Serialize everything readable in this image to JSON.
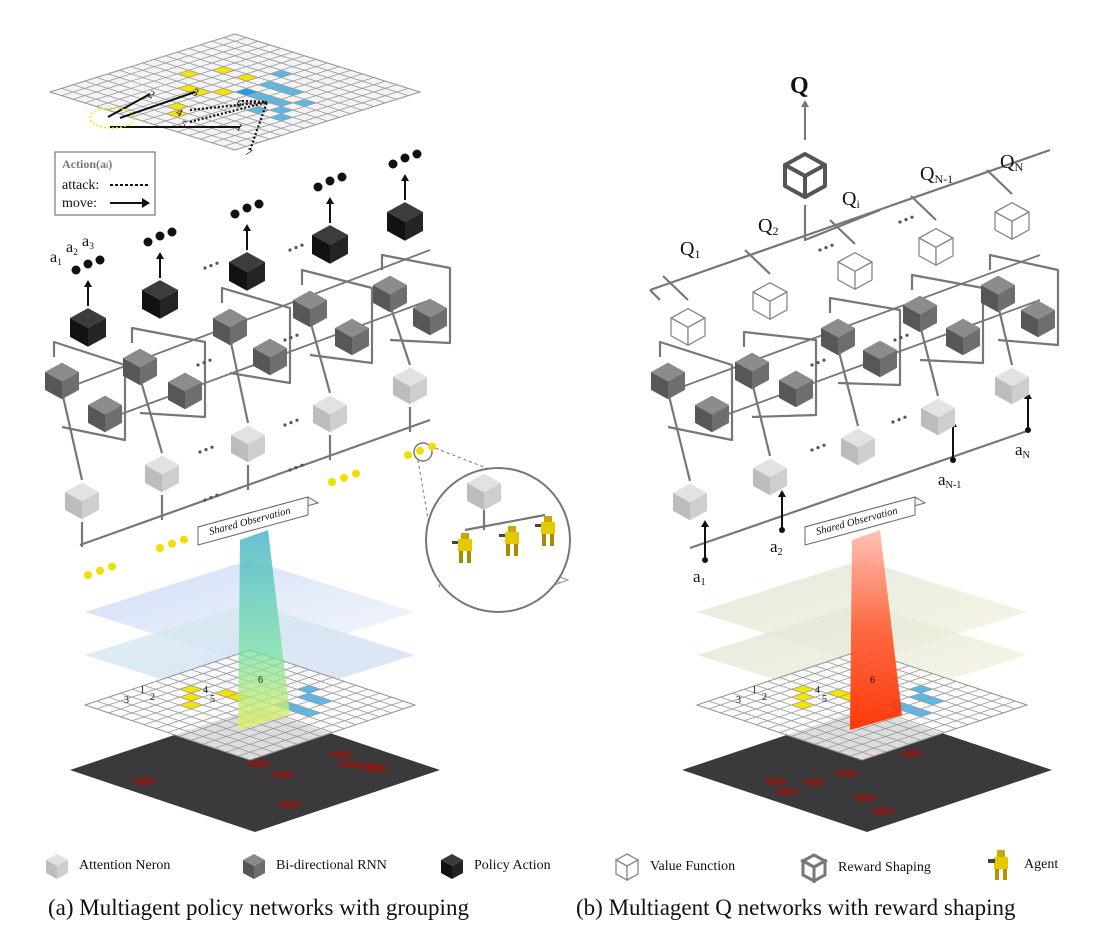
{
  "panel_a": {
    "action_box": {
      "title": "Action(a",
      "title_sub": "i",
      "title_close": ")",
      "attack_label": "attack:",
      "move_label": "move:"
    },
    "grid_numbers": [
      "1",
      "2",
      "3",
      "4",
      "5",
      "6",
      "7"
    ],
    "action_labels": [
      {
        "base": "a",
        "sub": "1"
      },
      {
        "base": "a",
        "sub": "2"
      },
      {
        "base": "a",
        "sub": "3"
      }
    ],
    "shared_observation": "Shared Observation",
    "map_numbers": [
      "1",
      "2",
      "3",
      "4",
      "5",
      "6"
    ]
  },
  "panel_b": {
    "q_top": "Q",
    "q_labels": [
      {
        "base": "Q",
        "sub": "1"
      },
      {
        "base": "Q",
        "sub": "2"
      },
      {
        "base": "Q",
        "sub": "i"
      },
      {
        "base": "Q",
        "sub": "N-1"
      },
      {
        "base": "Q",
        "sub": "N"
      }
    ],
    "action_inputs": [
      {
        "base": "a",
        "sub": "1"
      },
      {
        "base": "a",
        "sub": "2"
      },
      {
        "base": "a",
        "sub": "N-1"
      },
      {
        "base": "a",
        "sub": "N"
      }
    ],
    "shared_observation": "Shared Observation"
  },
  "legend": [
    {
      "icon": "attention-neuron-cube",
      "label": "Attention Neron"
    },
    {
      "icon": "bidirectional-rnn-cube",
      "label": "Bi-directional RNN"
    },
    {
      "icon": "policy-action-cube",
      "label": "Policy Action"
    },
    {
      "icon": "value-function-cube",
      "label": "Value Function"
    },
    {
      "icon": "reward-shaping-cube",
      "label": "Reward Shaping"
    },
    {
      "icon": "agent-robot",
      "label": "Agent"
    }
  ],
  "captions": {
    "a": "(a) Multiagent policy networks with grouping",
    "b": "(b) Multiagent Q networks with reward shaping"
  },
  "colors": {
    "attention": "#c8c8c8",
    "rnn": "#666666",
    "policy": "#1c1c1c",
    "grid_highlight": "#5bb8e6",
    "unit_marker": "#f5e400",
    "beam_a": "#6fe0a0",
    "beam_b": "#ff4a20"
  }
}
